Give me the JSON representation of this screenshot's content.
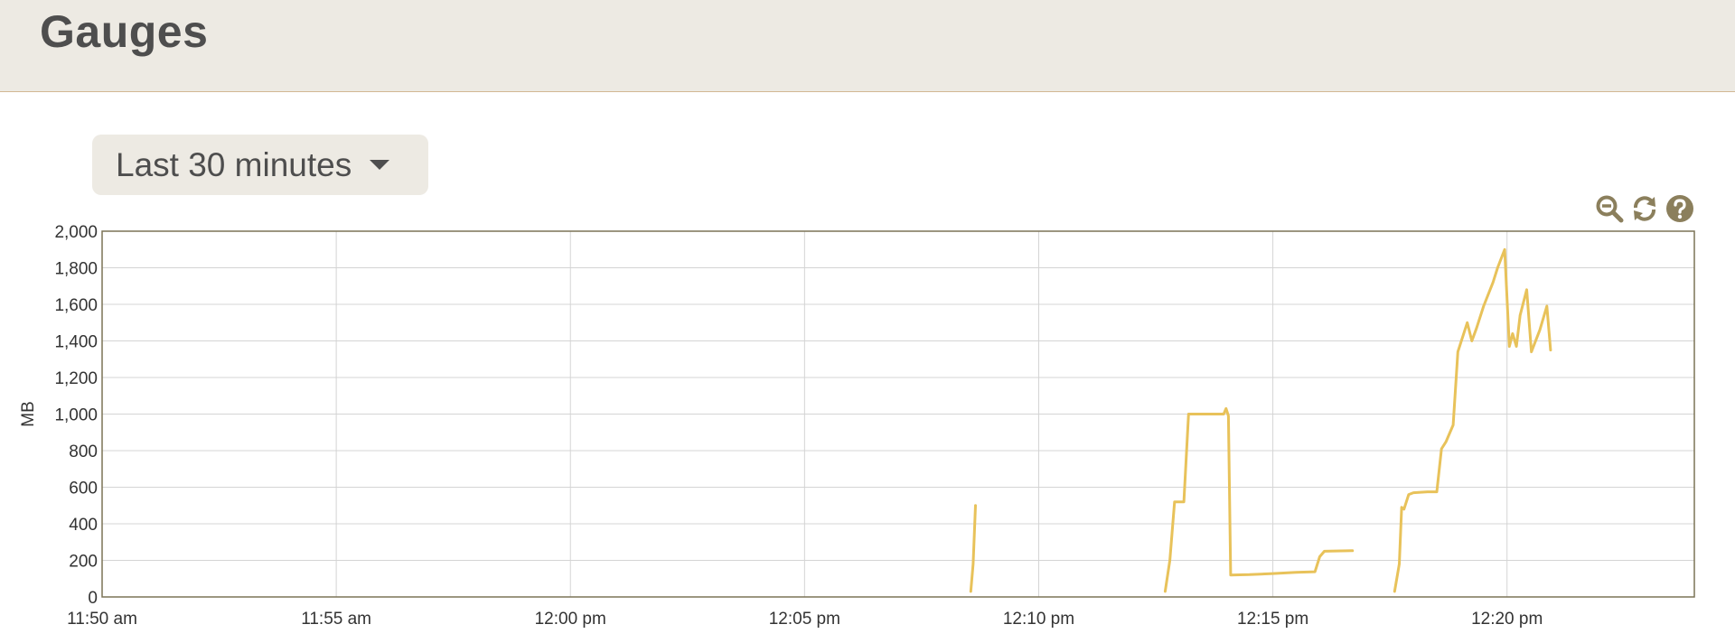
{
  "header": {
    "title": "Gauges"
  },
  "controls": {
    "range_label": "Last 30 minutes"
  },
  "toolbar": {
    "icons": [
      "zoom-out-icon",
      "refresh-icon",
      "help-icon"
    ]
  },
  "colors": {
    "series": "#e8c25a",
    "grid": "#d4d4d4",
    "frame": "#7c7457",
    "icon": "#8b7f5c"
  },
  "chart_data": {
    "type": "line",
    "ylabel": "MB",
    "ylim": [
      0,
      2000
    ],
    "y_ticks": [
      "0",
      "200",
      "400",
      "600",
      "800",
      "1,000",
      "1,200",
      "1,400",
      "1,600",
      "1,800",
      "2,000"
    ],
    "x_domain_minutes": [
      0,
      34
    ],
    "x_ticks": [
      {
        "minute": 0,
        "label": "11:50 am"
      },
      {
        "minute": 5,
        "label": "11:55 am"
      },
      {
        "minute": 10,
        "label": "12:00 pm"
      },
      {
        "minute": 15,
        "label": "12:05 pm"
      },
      {
        "minute": 20,
        "label": "12:10 pm"
      },
      {
        "minute": 25,
        "label": "12:15 pm"
      },
      {
        "minute": 30,
        "label": "12:20 pm"
      }
    ],
    "grid": true,
    "series": [
      {
        "segments": [
          [
            [
              18.55,
              30
            ],
            [
              18.6,
              180
            ],
            [
              18.65,
              500
            ]
          ],
          [
            [
              22.7,
              30
            ],
            [
              22.8,
              200
            ],
            [
              22.9,
              520
            ],
            [
              23.1,
              520
            ],
            [
              23.2,
              1000
            ],
            [
              23.8,
              1000
            ],
            [
              23.95,
              1000
            ],
            [
              24.0,
              1030
            ],
            [
              24.05,
              990
            ],
            [
              24.1,
              120
            ],
            [
              24.5,
              122
            ],
            [
              25.0,
              128
            ],
            [
              25.5,
              135
            ],
            [
              25.9,
              138
            ],
            [
              26.0,
              220
            ],
            [
              26.1,
              250
            ],
            [
              26.7,
              253
            ]
          ],
          [
            [
              27.6,
              30
            ],
            [
              27.7,
              180
            ],
            [
              27.75,
              490
            ],
            [
              27.8,
              480
            ],
            [
              27.9,
              560
            ],
            [
              28.0,
              570
            ],
            [
              28.3,
              575
            ],
            [
              28.5,
              575
            ],
            [
              28.6,
              810
            ],
            [
              28.7,
              850
            ],
            [
              28.85,
              940
            ],
            [
              28.95,
              1340
            ],
            [
              29.15,
              1500
            ],
            [
              29.25,
              1400
            ],
            [
              29.35,
              1470
            ],
            [
              29.5,
              1590
            ],
            [
              29.7,
              1720
            ],
            [
              29.8,
              1800
            ],
            [
              29.95,
              1900
            ],
            [
              30.05,
              1370
            ],
            [
              30.12,
              1440
            ],
            [
              30.2,
              1370
            ],
            [
              30.28,
              1540
            ],
            [
              30.42,
              1680
            ],
            [
              30.52,
              1340
            ],
            [
              30.7,
              1460
            ],
            [
              30.85,
              1590
            ],
            [
              30.93,
              1350
            ]
          ]
        ]
      }
    ]
  }
}
